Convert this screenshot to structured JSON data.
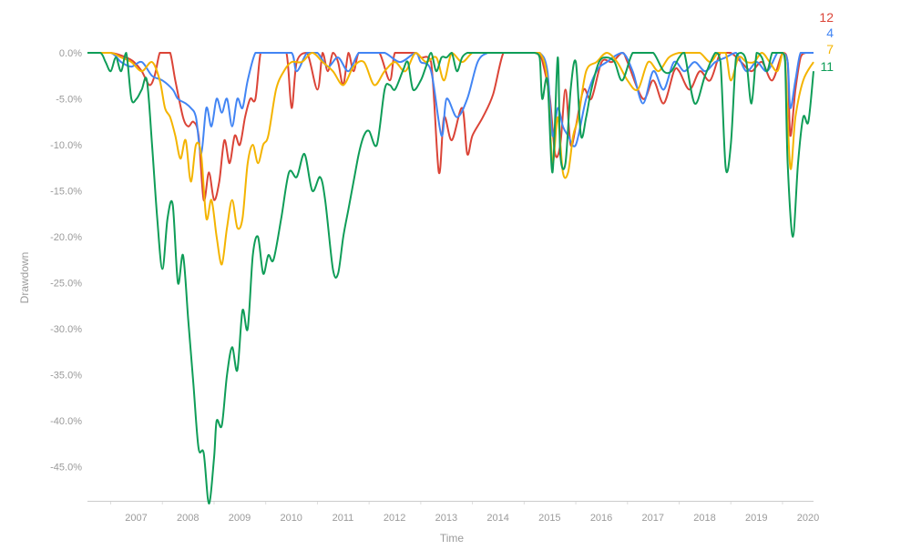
{
  "chart_data": {
    "type": "line",
    "xlabel": "Time",
    "ylabel": "Drawdown",
    "xlim": [
      2006.55,
      2020.6
    ],
    "ylim": [
      -0.487,
      0.0
    ],
    "yticks": [
      0,
      -0.05,
      -0.1,
      -0.15,
      -0.2,
      -0.25,
      -0.3,
      -0.35,
      -0.4,
      -0.45
    ],
    "ytick_labels": [
      "0.0%",
      "-5.0%",
      "-10.0%",
      "-15.0%",
      "-20.0%",
      "-25.0%",
      "-30.0%",
      "-35.0%",
      "-40.0%",
      "-45.0%"
    ],
    "xticks": [
      2007,
      2008,
      2009,
      2010,
      2011,
      2012,
      2013,
      2014,
      2015,
      2016,
      2017,
      2018,
      2019,
      2020
    ],
    "xtick_labels": [
      "2007",
      "2008",
      "2009",
      "2010",
      "2011",
      "2012",
      "2013",
      "2014",
      "2015",
      "2016",
      "2017",
      "2018",
      "2019",
      "2020"
    ],
    "grid": false,
    "legend": "end-of-line labels, top-right",
    "series": [
      {
        "name": "12",
        "color": "#db4437",
        "x": [
          2006.55,
          2007.0,
          2007.3,
          2007.45,
          2007.6,
          2007.75,
          2007.85,
          2007.95,
          2008.05,
          2008.15,
          2008.25,
          2008.4,
          2008.5,
          2008.6,
          2008.7,
          2008.8,
          2008.9,
          2009.0,
          2009.1,
          2009.2,
          2009.3,
          2009.4,
          2009.5,
          2009.6,
          2009.7,
          2009.8,
          2009.9,
          2010.0,
          2010.2,
          2010.4,
          2010.5,
          2010.6,
          2010.8,
          2011.0,
          2011.1,
          2011.2,
          2011.3,
          2011.4,
          2011.5,
          2011.6,
          2011.7,
          2011.8,
          2012.0,
          2012.2,
          2012.4,
          2012.5,
          2012.7,
          2012.9,
          2013.0,
          2013.2,
          2013.35,
          2013.45,
          2013.6,
          2013.8,
          2013.9,
          2014.0,
          2014.2,
          2014.4,
          2014.6,
          2014.8,
          2015.0,
          2015.2,
          2015.3,
          2015.4,
          2015.5,
          2015.6,
          2015.7,
          2015.8,
          2015.9,
          2016.0,
          2016.15,
          2016.3,
          2016.5,
          2016.7,
          2016.9,
          2017.0,
          2017.3,
          2017.5,
          2017.7,
          2017.9,
          2018.0,
          2018.2,
          2018.4,
          2018.6,
          2018.8,
          2019.0,
          2019.2,
          2019.4,
          2019.6,
          2019.8,
          2020.0,
          2020.1,
          2020.15,
          2020.25,
          2020.35,
          2020.45,
          2020.6
        ],
        "values": [
          0,
          0,
          -0.005,
          -0.01,
          -0.02,
          -0.035,
          -0.025,
          0,
          0,
          0,
          -0.03,
          -0.07,
          -0.08,
          -0.075,
          -0.09,
          -0.16,
          -0.13,
          -0.16,
          -0.14,
          -0.095,
          -0.12,
          -0.09,
          -0.1,
          -0.07,
          -0.05,
          -0.05,
          0,
          0,
          0,
          0,
          -0.06,
          -0.01,
          0,
          -0.04,
          0,
          -0.02,
          0,
          -0.01,
          -0.035,
          0,
          -0.02,
          0,
          0,
          0,
          -0.03,
          0,
          0,
          0,
          -0.005,
          -0.01,
          -0.13,
          -0.07,
          -0.095,
          -0.06,
          -0.11,
          -0.09,
          -0.07,
          -0.045,
          0,
          0,
          0,
          0,
          0,
          -0.02,
          -0.05,
          -0.11,
          -0.1,
          -0.04,
          -0.1,
          -0.08,
          -0.04,
          -0.05,
          -0.01,
          -0.01,
          0,
          -0.01,
          -0.05,
          -0.03,
          -0.055,
          -0.02,
          -0.02,
          -0.04,
          -0.02,
          -0.03,
          0,
          0,
          -0.01,
          -0.02,
          -0.01,
          -0.03,
          0,
          -0.01,
          -0.09,
          -0.04,
          -0.005,
          0,
          0
        ]
      },
      {
        "name": "4",
        "color": "#4285f4",
        "x": [
          2006.55,
          2007.0,
          2007.2,
          2007.4,
          2007.6,
          2007.8,
          2008.0,
          2008.2,
          2008.3,
          2008.45,
          2008.55,
          2008.65,
          2008.75,
          2008.85,
          2008.95,
          2009.05,
          2009.15,
          2009.25,
          2009.35,
          2009.45,
          2009.55,
          2009.65,
          2009.8,
          2009.95,
          2010.2,
          2010.5,
          2010.6,
          2010.8,
          2011.0,
          2011.2,
          2011.4,
          2011.6,
          2011.8,
          2012.0,
          2012.3,
          2012.6,
          2012.9,
          2013.0,
          2013.2,
          2013.4,
          2013.5,
          2013.7,
          2013.9,
          2014.1,
          2014.3,
          2014.5,
          2014.7,
          2015.0,
          2015.3,
          2015.45,
          2015.55,
          2015.65,
          2015.75,
          2015.85,
          2016.0,
          2016.2,
          2016.4,
          2016.6,
          2016.9,
          2017.1,
          2017.3,
          2017.5,
          2017.7,
          2017.9,
          2018.1,
          2018.3,
          2018.5,
          2018.7,
          2018.9,
          2019.1,
          2019.3,
          2019.5,
          2019.7,
          2019.9,
          2020.0,
          2020.1,
          2020.15,
          2020.25,
          2020.35,
          2020.5,
          2020.6
        ],
        "values": [
          0,
          0,
          -0.01,
          -0.015,
          -0.01,
          -0.025,
          -0.03,
          -0.04,
          -0.05,
          -0.055,
          -0.06,
          -0.07,
          -0.11,
          -0.06,
          -0.08,
          -0.05,
          -0.065,
          -0.05,
          -0.08,
          -0.05,
          -0.06,
          -0.03,
          0,
          0,
          0,
          0,
          -0.02,
          0,
          0,
          -0.015,
          -0.005,
          -0.02,
          0,
          0,
          0,
          -0.01,
          0,
          -0.01,
          -0.02,
          -0.09,
          -0.05,
          -0.07,
          -0.05,
          -0.01,
          0,
          0,
          0,
          0,
          0,
          -0.02,
          -0.09,
          -0.06,
          -0.08,
          -0.09,
          -0.1,
          -0.05,
          -0.02,
          -0.01,
          0,
          -0.02,
          -0.055,
          -0.02,
          -0.04,
          -0.01,
          -0.02,
          -0.01,
          -0.02,
          -0.01,
          -0.005,
          0,
          -0.02,
          -0.01,
          -0.02,
          0,
          0,
          -0.01,
          -0.06,
          -0.03,
          0,
          0,
          0
        ]
      },
      {
        "name": "7",
        "color": "#f4b400",
        "x": [
          2006.55,
          2007.0,
          2007.2,
          2007.4,
          2007.6,
          2007.8,
          2007.95,
          2008.05,
          2008.15,
          2008.25,
          2008.35,
          2008.45,
          2008.55,
          2008.65,
          2008.75,
          2008.85,
          2008.95,
          2009.05,
          2009.15,
          2009.25,
          2009.35,
          2009.45,
          2009.55,
          2009.65,
          2009.75,
          2009.85,
          2009.95,
          2010.05,
          2010.2,
          2010.35,
          2010.5,
          2010.7,
          2010.9,
          2011.1,
          2011.3,
          2011.5,
          2011.7,
          2011.9,
          2012.1,
          2012.3,
          2012.5,
          2012.7,
          2012.9,
          2013.1,
          2013.3,
          2013.45,
          2013.6,
          2013.8,
          2014.0,
          2014.2,
          2014.5,
          2014.8,
          2015.0,
          2015.3,
          2015.45,
          2015.55,
          2015.65,
          2015.75,
          2015.85,
          2015.95,
          2016.05,
          2016.2,
          2016.4,
          2016.6,
          2016.8,
          2017.0,
          2017.2,
          2017.4,
          2017.6,
          2017.8,
          2018.0,
          2018.2,
          2018.4,
          2018.6,
          2018.75,
          2018.9,
          2019.0,
          2019.15,
          2019.3,
          2019.45,
          2019.6,
          2019.75,
          2019.9,
          2020.0,
          2020.05,
          2020.15,
          2020.25,
          2020.4,
          2020.6
        ],
        "values": [
          0,
          0,
          -0.005,
          -0.01,
          -0.02,
          -0.01,
          -0.03,
          -0.06,
          -0.07,
          -0.09,
          -0.115,
          -0.095,
          -0.14,
          -0.1,
          -0.11,
          -0.18,
          -0.16,
          -0.2,
          -0.23,
          -0.19,
          -0.16,
          -0.19,
          -0.18,
          -0.12,
          -0.1,
          -0.12,
          -0.1,
          -0.09,
          -0.04,
          -0.02,
          -0.01,
          -0.01,
          0,
          -0.01,
          -0.02,
          -0.035,
          -0.015,
          -0.01,
          -0.035,
          -0.02,
          -0.01,
          -0.02,
          0,
          -0.01,
          -0.005,
          -0.03,
          0,
          -0.01,
          0,
          0,
          0,
          0,
          0,
          0,
          -0.03,
          -0.12,
          -0.07,
          -0.13,
          -0.13,
          -0.09,
          -0.07,
          -0.02,
          -0.01,
          0,
          -0.01,
          -0.03,
          -0.04,
          -0.01,
          -0.02,
          -0.005,
          0,
          0,
          0,
          -0.01,
          0,
          0,
          -0.03,
          -0.005,
          -0.01,
          -0.01,
          0,
          -0.01,
          -0.02,
          0,
          -0.005,
          -0.125,
          -0.07,
          -0.03,
          -0.01
        ]
      },
      {
        "name": "11",
        "color": "#0f9d58",
        "x": [
          2006.55,
          2006.8,
          2006.9,
          2007.0,
          2007.1,
          2007.2,
          2007.3,
          2007.4,
          2007.5,
          2007.6,
          2007.7,
          2007.8,
          2007.9,
          2008.0,
          2008.1,
          2008.2,
          2008.3,
          2008.4,
          2008.5,
          2008.6,
          2008.7,
          2008.8,
          2008.9,
          2009.0,
          2009.05,
          2009.15,
          2009.25,
          2009.35,
          2009.45,
          2009.55,
          2009.65,
          2009.75,
          2009.85,
          2009.95,
          2010.05,
          2010.15,
          2010.3,
          2010.45,
          2010.6,
          2010.75,
          2010.9,
          2011.05,
          2011.15,
          2011.3,
          2011.4,
          2011.5,
          2011.6,
          2011.7,
          2011.8,
          2011.9,
          2012.0,
          2012.15,
          2012.3,
          2012.4,
          2012.5,
          2012.65,
          2012.75,
          2012.85,
          2013.0,
          2013.1,
          2013.2,
          2013.3,
          2013.4,
          2013.5,
          2013.6,
          2013.7,
          2013.8,
          2013.9,
          2014.0,
          2014.2,
          2014.5,
          2014.8,
          2015.0,
          2015.2,
          2015.3,
          2015.35,
          2015.45,
          2015.55,
          2015.65,
          2015.7,
          2015.8,
          2015.9,
          2016.0,
          2016.1,
          2016.2,
          2016.3,
          2016.45,
          2016.6,
          2016.75,
          2016.9,
          2017.1,
          2017.3,
          2017.5,
          2017.7,
          2017.85,
          2018.0,
          2018.1,
          2018.3,
          2018.5,
          2018.7,
          2018.8,
          2018.9,
          2019.0,
          2019.1,
          2019.2,
          2019.3,
          2019.4,
          2019.5,
          2019.6,
          2019.7,
          2019.8,
          2019.9,
          2020.0,
          2020.05,
          2020.1,
          2020.2,
          2020.3,
          2020.4,
          2020.5,
          2020.6
        ],
        "values": [
          0,
          0,
          -0.01,
          -0.02,
          -0.005,
          -0.02,
          0,
          -0.05,
          -0.05,
          -0.04,
          -0.03,
          -0.1,
          -0.18,
          -0.235,
          -0.18,
          -0.165,
          -0.25,
          -0.22,
          -0.29,
          -0.36,
          -0.43,
          -0.435,
          -0.49,
          -0.44,
          -0.4,
          -0.405,
          -0.35,
          -0.32,
          -0.345,
          -0.28,
          -0.3,
          -0.22,
          -0.2,
          -0.24,
          -0.22,
          -0.225,
          -0.18,
          -0.13,
          -0.135,
          -0.11,
          -0.15,
          -0.135,
          -0.16,
          -0.235,
          -0.24,
          -0.2,
          -0.17,
          -0.14,
          -0.11,
          -0.09,
          -0.085,
          -0.1,
          -0.04,
          -0.035,
          -0.04,
          -0.02,
          -0.01,
          -0.04,
          -0.03,
          -0.015,
          0,
          -0.02,
          -0.005,
          -0.005,
          0,
          -0.02,
          -0.005,
          0,
          0,
          0,
          0,
          0,
          0,
          0,
          -0.005,
          -0.05,
          -0.03,
          -0.13,
          -0.005,
          -0.11,
          -0.12,
          -0.04,
          -0.01,
          -0.09,
          -0.07,
          -0.04,
          -0.01,
          -0.005,
          -0.01,
          -0.03,
          0,
          0,
          0,
          -0.02,
          -0.02,
          -0.005,
          0,
          -0.055,
          -0.025,
          0,
          -0.01,
          -0.125,
          -0.1,
          -0.005,
          0,
          -0.01,
          -0.055,
          0,
          -0.005,
          -0.02,
          0,
          0,
          0,
          -0.01,
          -0.12,
          -0.2,
          -0.12,
          -0.07,
          -0.075,
          -0.02
        ]
      }
    ]
  }
}
